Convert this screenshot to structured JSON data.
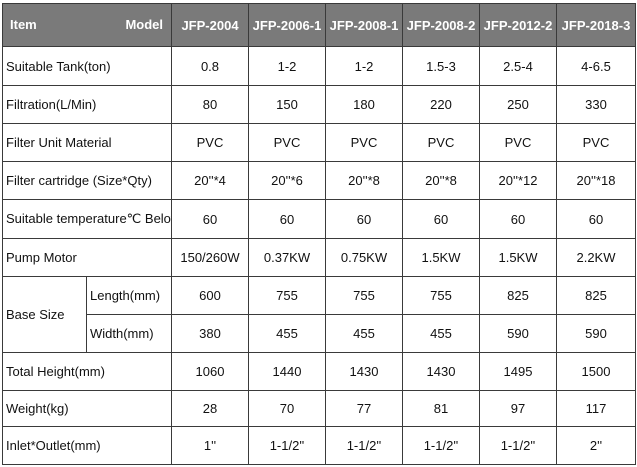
{
  "header": {
    "item_label": "Item",
    "model_label": "Model",
    "models": [
      "JFP-2004",
      "JFP-2006-1",
      "JFP-2008-1",
      "JFP-2008-2",
      "JFP-2012-2",
      "JFP-2018-3"
    ]
  },
  "rows": {
    "tank": {
      "label": "Suitable Tank(ton)",
      "values": [
        "0.8",
        "1-2",
        "1-2",
        "1.5-3",
        "2.5-4",
        "4-6.5"
      ]
    },
    "filtration": {
      "label": "Filtration(L/Min)",
      "values": [
        "80",
        "150",
        "180",
        "220",
        "250",
        "330"
      ]
    },
    "material": {
      "label": "Filter Unit Material",
      "values": [
        "PVC",
        "PVC",
        "PVC",
        "PVC",
        "PVC",
        "PVC"
      ]
    },
    "cartridge": {
      "label": "Filter cartridge (Size*Qty)",
      "values": [
        "20''*4",
        "20''*6",
        "20''*8",
        "20''*8",
        "20''*12",
        "20''*18"
      ]
    },
    "temperature": {
      "label": "Suitable temperature℃ Below",
      "values": [
        "60",
        "60",
        "60",
        "60",
        "60",
        "60"
      ]
    },
    "pump": {
      "label": "Pump Motor",
      "values": [
        "150/260W",
        "0.37KW",
        "0.75KW",
        "1.5KW",
        "1.5KW",
        "2.2KW"
      ]
    },
    "base": {
      "label": "Base Size",
      "length": {
        "label": "Length(mm)",
        "values": [
          "600",
          "755",
          "755",
          "755",
          "825",
          "825"
        ]
      },
      "width": {
        "label": "Width(mm)",
        "values": [
          "380",
          "455",
          "455",
          "455",
          "590",
          "590"
        ]
      }
    },
    "height": {
      "label": "Total Height(mm)",
      "values": [
        "1060",
        "1440",
        "1430",
        "1430",
        "1495",
        "1500"
      ]
    },
    "weight": {
      "label": "Weight(kg)",
      "values": [
        "28",
        "70",
        "77",
        "81",
        "97",
        "117"
      ]
    },
    "inlet": {
      "label": "Inlet*Outlet(mm)",
      "values": [
        "1''",
        "1-1/2''",
        "1-1/2''",
        "1-1/2''",
        "1-1/2''",
        "2''"
      ]
    }
  },
  "colors": {
    "header_bg": "#7a7a7a",
    "header_text": "#ffffff",
    "border": "#3a3a3a"
  }
}
